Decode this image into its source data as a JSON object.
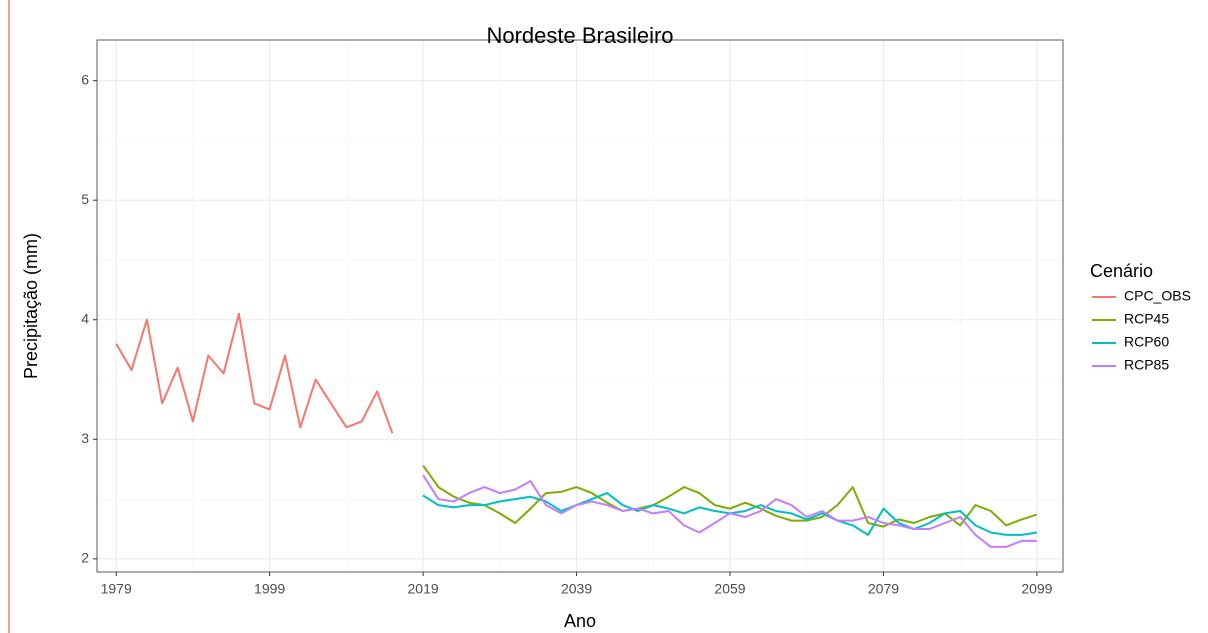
{
  "chart_data": {
    "type": "line",
    "title": "Nordeste Brasileiro",
    "x_label": "Ano",
    "y_label": "Precipitação (mm)",
    "legend_title": "Cenário",
    "legend": "right",
    "grid": true,
    "xlim": [
      1976.5,
      2102.4
    ],
    "ylim": [
      1.89,
      6.34
    ],
    "xticks": [
      1979,
      1999,
      2019,
      2039,
      2059,
      2079,
      2099
    ],
    "yticks": [
      2,
      3,
      4,
      5,
      6
    ],
    "series": [
      {
        "name": "CPC_OBS",
        "color": "#F8766D",
        "x": [
          1979,
          1981,
          1983,
          1985,
          1987,
          1989,
          1991,
          1993,
          1995,
          1997,
          1999,
          2001,
          2003,
          2005,
          2007,
          2009,
          2011,
          2013,
          2015
        ],
        "values": [
          3.8,
          3.58,
          4.0,
          3.3,
          3.6,
          3.15,
          3.7,
          3.55,
          4.05,
          3.3,
          3.25,
          3.7,
          3.1,
          3.5,
          3.3,
          3.1,
          3.15,
          3.4,
          3.05
        ]
      },
      {
        "name": "RCP45",
        "color": "#7CAE00",
        "x": [
          2019,
          2021,
          2023,
          2025,
          2027,
          2029,
          2031,
          2033,
          2035,
          2037,
          2039,
          2041,
          2043,
          2045,
          2047,
          2049,
          2051,
          2053,
          2055,
          2057,
          2059,
          2061,
          2063,
          2065,
          2067,
          2069,
          2071,
          2073,
          2075,
          2077,
          2079,
          2081,
          2083,
          2085,
          2087,
          2089,
          2091,
          2093,
          2095,
          2097,
          2099
        ],
        "values": [
          2.78,
          2.6,
          2.52,
          2.47,
          2.45,
          2.38,
          2.3,
          2.42,
          2.55,
          2.56,
          2.6,
          2.55,
          2.47,
          2.4,
          2.42,
          2.45,
          2.52,
          2.6,
          2.55,
          2.45,
          2.42,
          2.47,
          2.42,
          2.36,
          2.32,
          2.32,
          2.35,
          2.45,
          2.6,
          2.3,
          2.27,
          2.33,
          2.3,
          2.35,
          2.38,
          2.28,
          2.45,
          2.4,
          2.28,
          2.33,
          2.37
        ]
      },
      {
        "name": "RCP60",
        "color": "#00BFC4",
        "x": [
          2019,
          2021,
          2023,
          2025,
          2027,
          2029,
          2031,
          2033,
          2035,
          2037,
          2039,
          2041,
          2043,
          2045,
          2047,
          2049,
          2051,
          2053,
          2055,
          2057,
          2059,
          2061,
          2063,
          2065,
          2067,
          2069,
          2071,
          2073,
          2075,
          2077,
          2079,
          2081,
          2083,
          2085,
          2087,
          2089,
          2091,
          2093,
          2095,
          2097,
          2099
        ],
        "values": [
          2.53,
          2.45,
          2.43,
          2.45,
          2.45,
          2.48,
          2.5,
          2.52,
          2.48,
          2.4,
          2.45,
          2.5,
          2.55,
          2.45,
          2.4,
          2.45,
          2.42,
          2.38,
          2.43,
          2.4,
          2.38,
          2.4,
          2.45,
          2.4,
          2.38,
          2.33,
          2.38,
          2.32,
          2.28,
          2.2,
          2.42,
          2.3,
          2.25,
          2.3,
          2.38,
          2.4,
          2.28,
          2.22,
          2.2,
          2.2,
          2.22
        ]
      },
      {
        "name": "RCP85",
        "color": "#C77CFF",
        "x": [
          2019,
          2021,
          2023,
          2025,
          2027,
          2029,
          2031,
          2033,
          2035,
          2037,
          2039,
          2041,
          2043,
          2045,
          2047,
          2049,
          2051,
          2053,
          2055,
          2057,
          2059,
          2061,
          2063,
          2065,
          2067,
          2069,
          2071,
          2073,
          2075,
          2077,
          2079,
          2081,
          2083,
          2085,
          2087,
          2089,
          2091,
          2093,
          2095,
          2097,
          2099
        ],
        "values": [
          2.7,
          2.5,
          2.48,
          2.55,
          2.6,
          2.55,
          2.58,
          2.65,
          2.45,
          2.38,
          2.45,
          2.48,
          2.45,
          2.4,
          2.42,
          2.38,
          2.4,
          2.28,
          2.22,
          2.3,
          2.38,
          2.35,
          2.4,
          2.5,
          2.45,
          2.35,
          2.4,
          2.32,
          2.32,
          2.35,
          2.3,
          2.28,
          2.25,
          2.25,
          2.3,
          2.35,
          2.2,
          2.1,
          2.1,
          2.15,
          2.15
        ]
      }
    ]
  }
}
